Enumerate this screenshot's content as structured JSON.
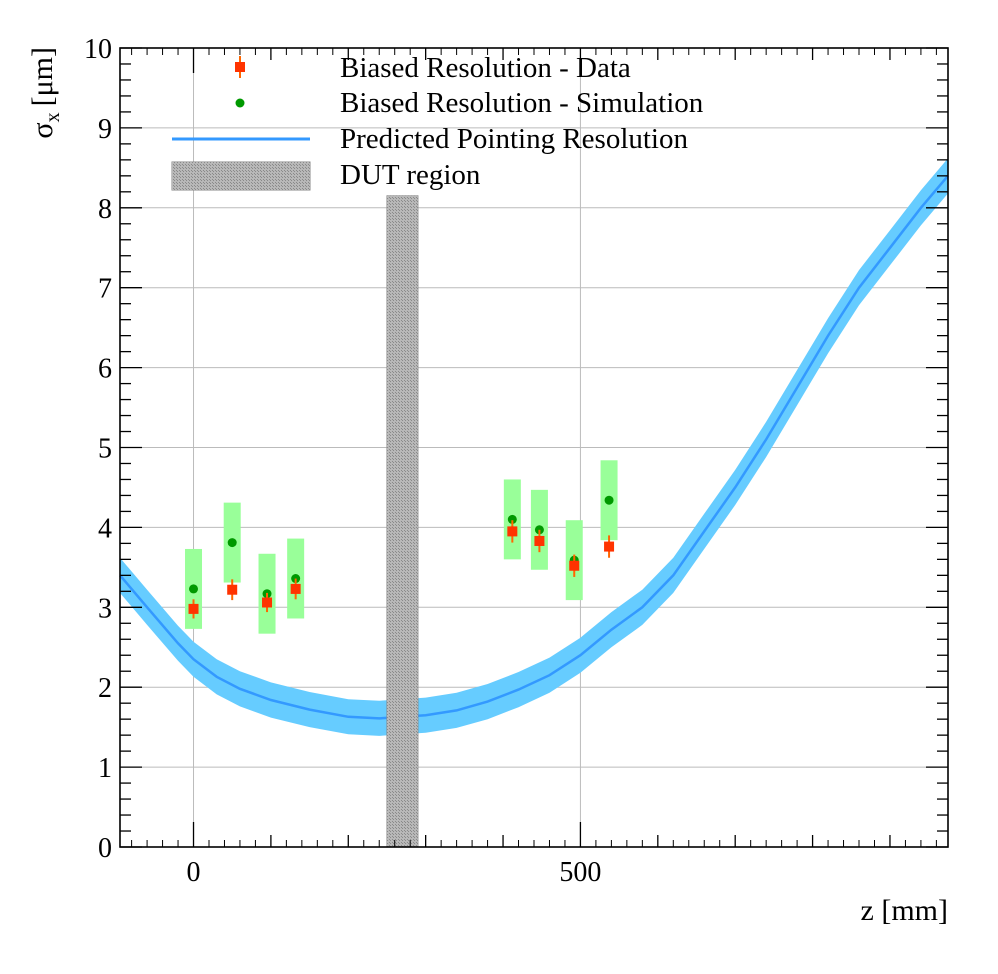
{
  "chart_data": {
    "type": "scatter",
    "title": "",
    "xlabel": "z [mm]",
    "ylabel_symbol": "σ",
    "ylabel_subscript": "x",
    "ylabel_unit": "[μm]",
    "xlim": [
      -95,
      975
    ],
    "ylim": [
      0,
      10
    ],
    "x_ticks": [
      0,
      500
    ],
    "y_ticks": [
      0,
      1,
      2,
      3,
      4,
      5,
      6,
      7,
      8,
      9,
      10
    ],
    "grid": true,
    "legend_position": "top-left",
    "legend": [
      {
        "key": "data",
        "label": "Biased Resolution - Data"
      },
      {
        "key": "sim",
        "label": "Biased Resolution - Simulation"
      },
      {
        "key": "pred",
        "label": "Predicted Pointing Resolution"
      },
      {
        "key": "dut",
        "label": "DUT region"
      }
    ],
    "colors": {
      "data": "#ff3300",
      "data_err": "#ff6600",
      "sim": "#009900",
      "sim_band": "#99ff99",
      "pred_line": "#3399ff",
      "pred_band": "#66ccff",
      "dut": "#b0b0b0",
      "grid": "#bbbbbb"
    },
    "series": [
      {
        "name": "Biased Resolution - Data",
        "points": [
          {
            "z": 0,
            "y": 2.98,
            "err": 0.12
          },
          {
            "z": 50,
            "y": 3.22,
            "err": 0.13
          },
          {
            "z": 95,
            "y": 3.06,
            "err": 0.12
          },
          {
            "z": 132,
            "y": 3.23,
            "err": 0.13
          },
          {
            "z": 412,
            "y": 3.95,
            "err": 0.14
          },
          {
            "z": 447,
            "y": 3.83,
            "err": 0.14
          },
          {
            "z": 492,
            "y": 3.52,
            "err": 0.14
          },
          {
            "z": 537,
            "y": 3.76,
            "err": 0.14
          }
        ]
      },
      {
        "name": "Biased Resolution - Simulation",
        "points": [
          {
            "z": 0,
            "y": 3.23,
            "band": [
              2.73,
              3.73
            ]
          },
          {
            "z": 50,
            "y": 3.81,
            "band": [
              3.31,
              4.31
            ]
          },
          {
            "z": 95,
            "y": 3.17,
            "band": [
              2.67,
              3.67
            ]
          },
          {
            "z": 132,
            "y": 3.36,
            "band": [
              2.86,
              3.86
            ]
          },
          {
            "z": 412,
            "y": 4.1,
            "band": [
              3.6,
              4.6
            ]
          },
          {
            "z": 447,
            "y": 3.97,
            "band": [
              3.47,
              4.47
            ]
          },
          {
            "z": 492,
            "y": 3.59,
            "band": [
              3.09,
              4.09
            ]
          },
          {
            "z": 537,
            "y": 4.34,
            "band": [
              3.84,
              4.84
            ]
          }
        ]
      },
      {
        "name": "Predicted Pointing Resolution",
        "curve": [
          {
            "z": -95,
            "y": 3.4
          },
          {
            "z": -60,
            "y": 3.0
          },
          {
            "z": -20,
            "y": 2.55
          },
          {
            "z": 0,
            "y": 2.35
          },
          {
            "z": 30,
            "y": 2.13
          },
          {
            "z": 60,
            "y": 1.98
          },
          {
            "z": 100,
            "y": 1.84
          },
          {
            "z": 150,
            "y": 1.72
          },
          {
            "z": 200,
            "y": 1.63
          },
          {
            "z": 240,
            "y": 1.61
          },
          {
            "z": 270,
            "y": 1.63
          },
          {
            "z": 300,
            "y": 1.65
          },
          {
            "z": 340,
            "y": 1.71
          },
          {
            "z": 380,
            "y": 1.82
          },
          {
            "z": 420,
            "y": 1.97
          },
          {
            "z": 460,
            "y": 2.15
          },
          {
            "z": 500,
            "y": 2.4
          },
          {
            "z": 540,
            "y": 2.72
          },
          {
            "z": 580,
            "y": 3.0
          },
          {
            "z": 620,
            "y": 3.4
          },
          {
            "z": 660,
            "y": 3.95
          },
          {
            "z": 700,
            "y": 4.5
          },
          {
            "z": 740,
            "y": 5.1
          },
          {
            "z": 780,
            "y": 5.75
          },
          {
            "z": 820,
            "y": 6.4
          },
          {
            "z": 860,
            "y": 7.0
          },
          {
            "z": 900,
            "y": 7.5
          },
          {
            "z": 940,
            "y": 8.0
          },
          {
            "z": 975,
            "y": 8.4
          }
        ],
        "band_halfwidth": 0.22
      }
    ],
    "dut_region": {
      "z_min": 250,
      "z_max": 290,
      "y_min": 0,
      "y_max": 8.15
    }
  }
}
